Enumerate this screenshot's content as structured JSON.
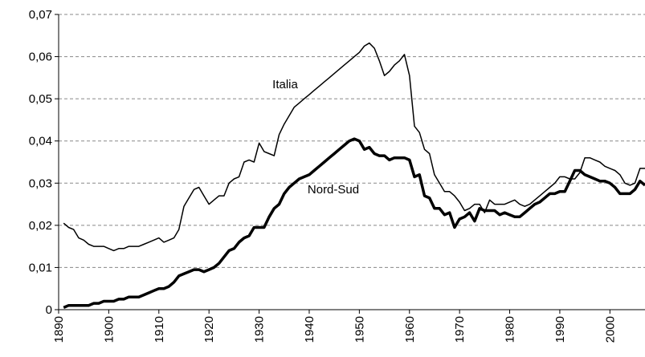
{
  "chart_data": {
    "type": "line",
    "x": [
      1891,
      1892,
      1893,
      1894,
      1895,
      1896,
      1897,
      1898,
      1899,
      1900,
      1901,
      1902,
      1903,
      1904,
      1905,
      1906,
      1907,
      1908,
      1909,
      1910,
      1911,
      1912,
      1913,
      1914,
      1915,
      1916,
      1917,
      1918,
      1919,
      1920,
      1921,
      1922,
      1923,
      1924,
      1925,
      1926,
      1927,
      1928,
      1929,
      1930,
      1931,
      1932,
      1933,
      1934,
      1935,
      1936,
      1937,
      1938,
      1939,
      1940,
      1941,
      1942,
      1943,
      1944,
      1945,
      1946,
      1947,
      1948,
      1949,
      1950,
      1951,
      1952,
      1953,
      1954,
      1955,
      1956,
      1957,
      1958,
      1959,
      1960,
      1961,
      1962,
      1963,
      1964,
      1965,
      1966,
      1967,
      1968,
      1969,
      1970,
      1971,
      1972,
      1973,
      1974,
      1975,
      1976,
      1977,
      1978,
      1979,
      1980,
      1981,
      1982,
      1983,
      1984,
      1985,
      1986,
      1987,
      1988,
      1989,
      1990,
      1991,
      1992,
      1993,
      1994,
      1995,
      1996,
      1997,
      1998,
      1999,
      2000,
      2001,
      2002,
      2003,
      2004,
      2005,
      2006,
      2007
    ],
    "series": [
      {
        "name": "Italia",
        "color": "#000000",
        "width": 1.5,
        "values": [
          0.0205,
          0.0195,
          0.019,
          0.017,
          0.0165,
          0.0155,
          0.015,
          0.015,
          0.015,
          0.0145,
          0.014,
          0.0145,
          0.0145,
          0.015,
          0.015,
          0.015,
          0.0155,
          0.016,
          0.0165,
          0.017,
          0.016,
          0.0165,
          0.017,
          0.019,
          0.0245,
          0.0265,
          0.0285,
          0.029,
          0.027,
          0.025,
          0.026,
          0.027,
          0.027,
          0.03,
          0.031,
          0.0315,
          0.035,
          0.0355,
          0.035,
          0.0395,
          0.0375,
          0.037,
          0.0365,
          0.0415,
          0.044,
          0.046,
          0.048,
          0.049,
          0.05,
          0.051,
          0.052,
          0.053,
          0.054,
          0.055,
          0.056,
          0.057,
          0.058,
          0.059,
          0.06,
          0.061,
          0.0625,
          0.0632,
          0.062,
          0.059,
          0.0555,
          0.0565,
          0.058,
          0.059,
          0.0605,
          0.0555,
          0.0435,
          0.042,
          0.038,
          0.037,
          0.032,
          0.03,
          0.028,
          0.028,
          0.027,
          0.0255,
          0.0235,
          0.024,
          0.025,
          0.025,
          0.023,
          0.026,
          0.025,
          0.025,
          0.025,
          0.0255,
          0.026,
          0.025,
          0.0245,
          0.025,
          0.026,
          0.027,
          0.028,
          0.029,
          0.03,
          0.0315,
          0.0315,
          0.031,
          0.031,
          0.0325,
          0.036,
          0.036,
          0.0355,
          0.035,
          0.034,
          0.0335,
          0.033,
          0.032,
          0.03,
          0.0295,
          0.03,
          0.0335,
          0.0335
        ]
      },
      {
        "name": "Nord-Sud",
        "color": "#000000",
        "width": 3.5,
        "values": [
          0.0005,
          0.001,
          0.001,
          0.001,
          0.001,
          0.001,
          0.0015,
          0.0015,
          0.002,
          0.002,
          0.002,
          0.0025,
          0.0025,
          0.003,
          0.003,
          0.003,
          0.0035,
          0.004,
          0.0045,
          0.005,
          0.005,
          0.0055,
          0.0065,
          0.008,
          0.0085,
          0.009,
          0.0095,
          0.0095,
          0.009,
          0.0095,
          0.01,
          0.011,
          0.0125,
          0.014,
          0.0145,
          0.016,
          0.017,
          0.0175,
          0.0195,
          0.0195,
          0.0195,
          0.022,
          0.024,
          0.025,
          0.0275,
          0.029,
          0.03,
          0.031,
          0.0315,
          0.032,
          0.033,
          0.034,
          0.035,
          0.036,
          0.037,
          0.038,
          0.039,
          0.04,
          0.0405,
          0.04,
          0.038,
          0.0385,
          0.037,
          0.0365,
          0.0365,
          0.0355,
          0.036,
          0.036,
          0.036,
          0.0355,
          0.0315,
          0.032,
          0.027,
          0.0265,
          0.024,
          0.024,
          0.0225,
          0.023,
          0.0195,
          0.0215,
          0.022,
          0.023,
          0.021,
          0.024,
          0.0235,
          0.0235,
          0.0235,
          0.0225,
          0.023,
          0.0225,
          0.022,
          0.022,
          0.023,
          0.024,
          0.025,
          0.0255,
          0.0265,
          0.0275,
          0.0275,
          0.028,
          0.028,
          0.0305,
          0.033,
          0.033,
          0.032,
          0.0315,
          0.031,
          0.0305,
          0.0305,
          0.03,
          0.029,
          0.0275,
          0.0275,
          0.0275,
          0.0285,
          0.0305,
          0.0295
        ]
      }
    ],
    "xlim": [
      1890,
      2007
    ],
    "xticks": [
      1890,
      1900,
      1910,
      1920,
      1930,
      1940,
      1950,
      1960,
      1970,
      1980,
      1990,
      2000
    ],
    "ylim": [
      0,
      0.07
    ],
    "yticks": [
      0,
      {
        "value": 0.01,
        "label": "0,01"
      },
      {
        "value": 0.02,
        "label": "0,02"
      },
      {
        "value": 0.03,
        "label": "0,03"
      },
      {
        "value": 0.04,
        "label": "0,04"
      },
      {
        "value": 0.05,
        "label": "0,05"
      },
      {
        "value": 0.06,
        "label": "0,06"
      },
      {
        "value": 0.07,
        "label": "0,07"
      }
    ],
    "grid": true
  }
}
